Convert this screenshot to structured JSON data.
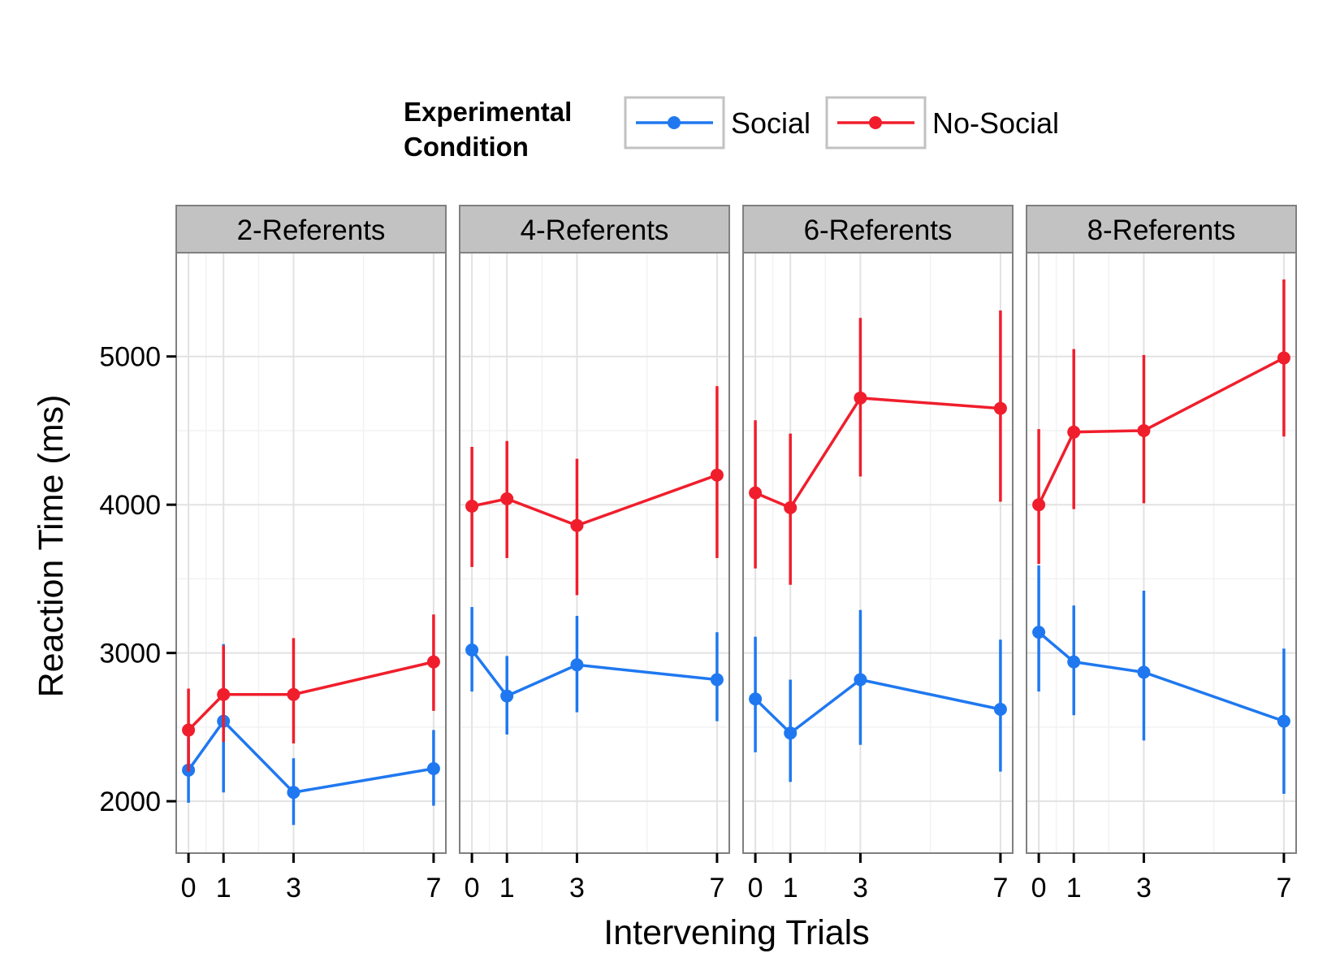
{
  "chart_data": {
    "type": "line",
    "xlabel": "Intervening Trials",
    "ylabel": "Reaction Time (ms)",
    "x": [
      0,
      1,
      3,
      7
    ],
    "x_ticks": [
      "0",
      "1",
      "3",
      "7"
    ],
    "xlim": [
      -0.35,
      7.35
    ],
    "y_ticks": [
      2000,
      3000,
      4000,
      5000
    ],
    "ylim": [
      1650,
      5700
    ],
    "grid": true,
    "legend": {
      "title_lines": [
        "Experimental",
        "Condition"
      ],
      "position": "top",
      "entries": [
        "Social",
        "No-Social"
      ]
    },
    "colors": {
      "Social": "#1f78f0",
      "No-Social": "#f01e2c"
    },
    "panels": [
      {
        "label": "2-Referents",
        "series": [
          {
            "name": "Social",
            "values": [
              2210,
              2540,
              2060,
              2220
            ],
            "lower": [
              1990,
              2060,
              1840,
              1970
            ],
            "upper": [
              2430,
              3060,
              2290,
              2480
            ]
          },
          {
            "name": "No-Social",
            "values": [
              2480,
              2720,
              2720,
              2940
            ],
            "lower": [
              2200,
              2400,
              2390,
              2610
            ],
            "upper": [
              2760,
              3050,
              3100,
              3260
            ]
          }
        ]
      },
      {
        "label": "4-Referents",
        "series": [
          {
            "name": "Social",
            "values": [
              3020,
              2710,
              2920,
              2820
            ],
            "lower": [
              2740,
              2450,
              2600,
              2540
            ],
            "upper": [
              3310,
              2980,
              3250,
              3140
            ]
          },
          {
            "name": "No-Social",
            "values": [
              3990,
              4040,
              3860,
              4200
            ],
            "lower": [
              3580,
              3640,
              3390,
              3640
            ],
            "upper": [
              4390,
              4430,
              4310,
              4800
            ]
          }
        ]
      },
      {
        "label": "6-Referents",
        "series": [
          {
            "name": "Social",
            "values": [
              2690,
              2460,
              2820,
              2620
            ],
            "lower": [
              2330,
              2130,
              2380,
              2200
            ],
            "upper": [
              3110,
              2820,
              3290,
              3090
            ]
          },
          {
            "name": "No-Social",
            "values": [
              4080,
              3980,
              4720,
              4650
            ],
            "lower": [
              3570,
              3460,
              4190,
              4020
            ],
            "upper": [
              4570,
              4480,
              5260,
              5310
            ]
          }
        ]
      },
      {
        "label": "8-Referents",
        "series": [
          {
            "name": "Social",
            "values": [
              3140,
              2940,
              2870,
              2540
            ],
            "lower": [
              2740,
              2580,
              2410,
              2050
            ],
            "upper": [
              3590,
              3320,
              3420,
              3030
            ]
          },
          {
            "name": "No-Social",
            "values": [
              4000,
              4490,
              4500,
              4990
            ],
            "lower": [
              3600,
              3970,
              4010,
              4460
            ],
            "upper": [
              4510,
              5050,
              5010,
              5520
            ]
          }
        ]
      }
    ]
  }
}
